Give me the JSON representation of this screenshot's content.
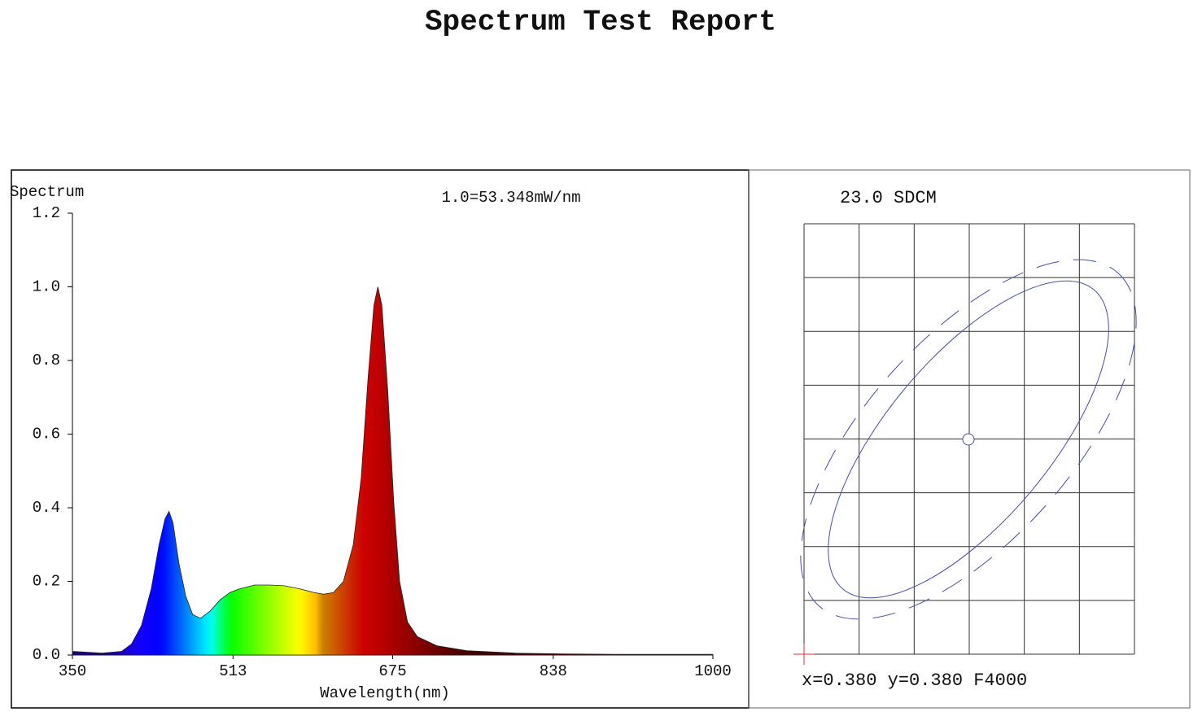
{
  "title": "Spectrum Test Report",
  "chart_data": {
    "type": "area",
    "y_label": "Spectrum",
    "x_label": "Wavelength(nm)",
    "annotation": "1.0=53.348mW/nm",
    "x": [
      350,
      380,
      400,
      410,
      420,
      430,
      438,
      444,
      448,
      452,
      458,
      465,
      472,
      480,
      490,
      500,
      510,
      520,
      535,
      550,
      565,
      580,
      595,
      605,
      615,
      625,
      635,
      643,
      650,
      656,
      660,
      664,
      670,
      676,
      682,
      690,
      700,
      720,
      750,
      800,
      850,
      900,
      1000
    ],
    "values": [
      0.01,
      0.005,
      0.01,
      0.03,
      0.08,
      0.18,
      0.3,
      0.37,
      0.39,
      0.36,
      0.25,
      0.16,
      0.11,
      0.1,
      0.12,
      0.15,
      0.17,
      0.18,
      0.19,
      0.19,
      0.188,
      0.18,
      0.17,
      0.165,
      0.17,
      0.2,
      0.3,
      0.48,
      0.75,
      0.95,
      1.0,
      0.95,
      0.72,
      0.42,
      0.2,
      0.09,
      0.05,
      0.025,
      0.012,
      0.005,
      0.003,
      0.002,
      0.002
    ],
    "xlim": [
      350,
      1000
    ],
    "xticks": [
      350,
      513,
      675,
      838,
      1000
    ],
    "ylim": [
      0,
      1.2
    ],
    "yticks": [
      {
        "value": 0,
        "label": "0.0"
      },
      0.2,
      0.4,
      0.6,
      0.8,
      {
        "value": 1,
        "label": "1.0"
      },
      1.2
    ],
    "color": "spectral"
  },
  "sdcm_panel": {
    "label": "23.0 SDCM",
    "coordinates": "x=0.380 y=0.380 F4000"
  }
}
